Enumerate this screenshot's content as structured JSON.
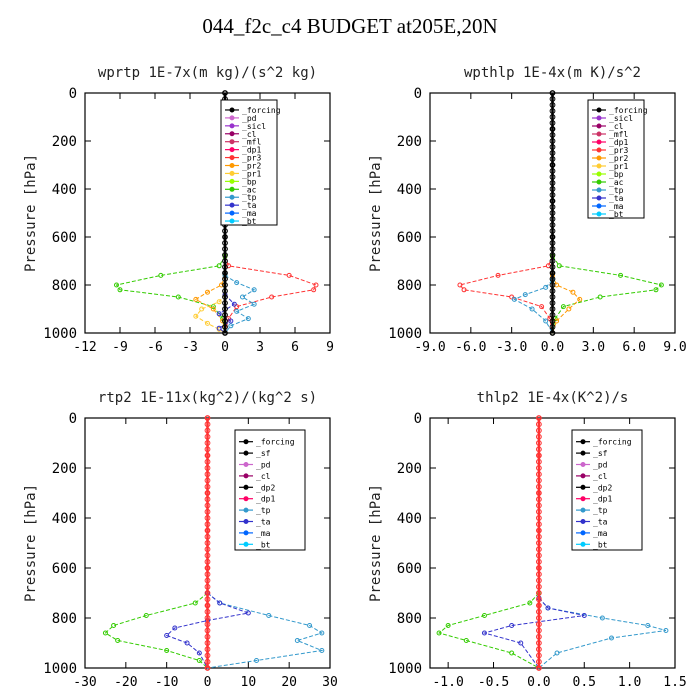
{
  "figure": {
    "title": "044_f2c_c4  BUDGET at205E,20N"
  },
  "colors": {
    "forcing": "#000000",
    "pd": "#cc66cc",
    "sicl": "#9933cc",
    "cl": "#990066",
    "mfl": "#cc3366",
    "dp1": "#ff0066",
    "pr3": "#ff3333",
    "pr2": "#ff9900",
    "pr1": "#ffcc33",
    "bp": "#99ff00",
    "ac": "#33cc00",
    "tp": "#3399cc",
    "ta": "#3333cc",
    "ma": "#0066ff",
    "bt": "#00ccff"
  },
  "chart_data": [
    {
      "type": "line",
      "title": "wprtp  1E-7x(m kg)/(s^2 kg)",
      "ylabel": "Pressure [hPa]",
      "ylim": [
        1000,
        0
      ],
      "xlim": [
        -12,
        9
      ],
      "xticks": [
        "-12",
        "-9",
        "-6",
        "-3",
        "0",
        "3",
        "6",
        "9"
      ],
      "xtick_values": [
        -12,
        -9,
        -6,
        -3,
        0,
        3,
        6,
        9
      ],
      "yticks": [
        "0",
        "200",
        "400",
        "600",
        "800",
        "1000"
      ],
      "ytick_values": [
        0,
        200,
        400,
        600,
        800,
        1000
      ],
      "legend": [
        "_forcing",
        "_pd",
        "_sicl",
        "_cl",
        "_mfl",
        "_dp1",
        "_pr3",
        "_pr2",
        "_pr1",
        "_bp",
        "_ac",
        "_tp",
        "_ta",
        "_ma",
        "_bt"
      ],
      "legend_position": "top-right",
      "series": [
        {
          "name": "_pr3",
          "color": "#ff3333",
          "x": [
            0,
            0.3,
            5.5,
            7.8,
            7.6,
            4.0,
            1.0,
            0.3,
            0
          ],
          "y": [
            680,
            720,
            760,
            800,
            820,
            850,
            890,
            940,
            1000
          ]
        },
        {
          "name": "_ac",
          "color": "#33cc00",
          "x": [
            0,
            -0.5,
            -5.5,
            -9.3,
            -9.0,
            -4.0,
            -1.0,
            -0.2,
            0
          ],
          "y": [
            680,
            720,
            760,
            800,
            820,
            850,
            890,
            940,
            1000
          ]
        },
        {
          "name": "_pr2",
          "color": "#ff9900",
          "x": [
            0,
            -0.3,
            -1.5,
            -2.5,
            -1.0,
            -0.2,
            0
          ],
          "y": [
            760,
            800,
            830,
            860,
            900,
            950,
            1000
          ]
        },
        {
          "name": "_pr1",
          "color": "#ffcc33",
          "x": [
            0,
            -0.5,
            -2.0,
            -2.5,
            -1.5,
            -0.5,
            0
          ],
          "y": [
            840,
            870,
            900,
            930,
            960,
            985,
            1000
          ]
        },
        {
          "name": "_tp",
          "color": "#3399cc",
          "x": [
            0,
            1.0,
            2.5,
            1.5,
            2.5,
            1.0,
            2.0,
            0.5,
            0
          ],
          "y": [
            760,
            790,
            820,
            850,
            880,
            910,
            940,
            970,
            1000
          ]
        },
        {
          "name": "_ta",
          "color": "#3333cc",
          "x": [
            0,
            0.8,
            -0.5,
            0.5,
            -0.5,
            0
          ],
          "y": [
            840,
            880,
            920,
            950,
            980,
            1000
          ]
        },
        {
          "name": "_forcing",
          "color": "#000000",
          "x": [
            0,
            0,
            0,
            0,
            0,
            0,
            0
          ],
          "y": [
            0,
            150,
            300,
            450,
            600,
            750,
            1000
          ]
        }
      ]
    },
    {
      "type": "line",
      "title": "wpthlp  1E-4x(m K)/s^2",
      "ylabel": "Pressure [hPa]",
      "ylim": [
        1000,
        0
      ],
      "xlim": [
        -9,
        9
      ],
      "xticks": [
        "-9.0",
        "-6.0",
        "-3.0",
        "0.0",
        "3.0",
        "6.0",
        "9.0"
      ],
      "xtick_values": [
        -9,
        -6,
        -3,
        0,
        3,
        6,
        9
      ],
      "yticks": [
        "0",
        "200",
        "400",
        "600",
        "800",
        "1000"
      ],
      "ytick_values": [
        0,
        200,
        400,
        600,
        800,
        1000
      ],
      "legend": [
        "_forcing",
        "_sicl",
        "_cl",
        "_mfl",
        "_dp1",
        "_pr3",
        "_pr2",
        "_pr1",
        "_bp",
        "_ac",
        "_tp",
        "_ta",
        "_ma",
        "_bt"
      ],
      "legend_position": "top-right",
      "series": [
        {
          "name": "_pr3",
          "color": "#ff3333",
          "x": [
            0,
            -0.3,
            -4.0,
            -6.8,
            -6.5,
            -3.0,
            -0.8,
            -0.2,
            0
          ],
          "y": [
            680,
            720,
            760,
            800,
            820,
            850,
            890,
            940,
            1000
          ]
        },
        {
          "name": "_ac",
          "color": "#33cc00",
          "x": [
            0,
            0.5,
            5.0,
            8.0,
            7.6,
            3.5,
            0.8,
            0.2,
            0
          ],
          "y": [
            680,
            720,
            760,
            800,
            820,
            850,
            890,
            940,
            1000
          ]
        },
        {
          "name": "_pr2",
          "color": "#ff9900",
          "x": [
            0,
            0.3,
            1.5,
            2.0,
            1.2,
            0.3,
            0
          ],
          "y": [
            760,
            800,
            830,
            860,
            900,
            950,
            1000
          ]
        },
        {
          "name": "_tp",
          "color": "#3399cc",
          "x": [
            0,
            -0.5,
            -2.0,
            -2.8,
            -1.5,
            -0.5,
            0
          ],
          "y": [
            780,
            810,
            840,
            860,
            900,
            950,
            1000
          ]
        },
        {
          "name": "_forcing",
          "color": "#000000",
          "x": [
            0,
            0,
            0,
            0,
            0,
            0,
            0
          ],
          "y": [
            0,
            150,
            300,
            450,
            600,
            750,
            1000
          ]
        }
      ]
    },
    {
      "type": "line",
      "title": "rtp2  1E-11x(kg^2)/(kg^2 s)",
      "ylabel": "Pressure [hPa]",
      "ylim": [
        1000,
        0
      ],
      "xlim": [
        -30,
        30
      ],
      "xticks": [
        "-30",
        "-20",
        "-10",
        "0",
        "10",
        "20",
        "30"
      ],
      "xtick_values": [
        -30,
        -20,
        -10,
        0,
        10,
        20,
        30
      ],
      "yticks": [
        "0",
        "200",
        "400",
        "600",
        "800",
        "1000"
      ],
      "ytick_values": [
        0,
        200,
        400,
        600,
        800,
        1000
      ],
      "legend": [
        "_forcing",
        "_sf",
        "_pd",
        "_cl",
        "_dp2",
        "_dp1",
        "_tp",
        "_ta",
        "_ma",
        "_bt"
      ],
      "legend_position": "top-right",
      "series": [
        {
          "name": "_dp1",
          "color": "#33cc00",
          "x": [
            0,
            -3,
            -15,
            -23,
            -25,
            -22,
            -10,
            -2,
            0
          ],
          "y": [
            700,
            740,
            790,
            830,
            860,
            890,
            930,
            970,
            1000
          ]
        },
        {
          "name": "_tp",
          "color": "#3399cc",
          "x": [
            0,
            3,
            15,
            25,
            28,
            22,
            28,
            12,
            0
          ],
          "y": [
            700,
            740,
            790,
            830,
            860,
            890,
            930,
            970,
            1000
          ]
        },
        {
          "name": "_ta",
          "color": "#3333cc",
          "x": [
            0,
            3,
            10,
            0,
            -8,
            -10,
            -5,
            -2,
            0
          ],
          "y": [
            700,
            740,
            780,
            810,
            840,
            870,
            900,
            940,
            1000
          ]
        },
        {
          "name": "_forcing",
          "color": "#ff3333",
          "x": [
            0,
            0,
            0,
            0,
            0,
            0,
            0
          ],
          "y": [
            0,
            150,
            300,
            450,
            600,
            750,
            1000
          ]
        }
      ]
    },
    {
      "type": "line",
      "title": "thlp2  1E-4x(K^2)/s",
      "ylabel": "Pressure [hPa]",
      "ylim": [
        1000,
        0
      ],
      "xlim": [
        -1.2,
        1.5
      ],
      "xticks": [
        "-1.0",
        "-0.5",
        "0.0",
        "0.5",
        "1.0",
        "1.5"
      ],
      "xtick_values": [
        -1.0,
        -0.5,
        0.0,
        0.5,
        1.0,
        1.5
      ],
      "yticks": [
        "0",
        "200",
        "400",
        "600",
        "800",
        "1000"
      ],
      "ytick_values": [
        0,
        200,
        400,
        600,
        800,
        1000
      ],
      "legend": [
        "_forcing",
        "_sf",
        "_pd",
        "_cl",
        "_dp2",
        "_dp1",
        "_tp",
        "_ta",
        "_ma",
        "_bt"
      ],
      "legend_position": "top-right",
      "series": [
        {
          "name": "_dp1",
          "color": "#33cc00",
          "x": [
            0,
            -0.1,
            -0.6,
            -1.0,
            -1.1,
            -0.8,
            -0.3,
            0
          ],
          "y": [
            700,
            740,
            790,
            830,
            860,
            890,
            940,
            1000
          ]
        },
        {
          "name": "_tp",
          "color": "#3399cc",
          "x": [
            0,
            0.1,
            0.7,
            1.2,
            1.4,
            0.8,
            0.2,
            0
          ],
          "y": [
            720,
            760,
            800,
            830,
            850,
            880,
            940,
            1000
          ]
        },
        {
          "name": "_ta",
          "color": "#3333cc",
          "x": [
            0,
            0.1,
            0.5,
            -0.3,
            -0.6,
            -0.2,
            0
          ],
          "y": [
            720,
            760,
            790,
            830,
            860,
            900,
            1000
          ]
        },
        {
          "name": "_forcing",
          "color": "#ff3333",
          "x": [
            0,
            0,
            0,
            0,
            0,
            0,
            0
          ],
          "y": [
            0,
            150,
            300,
            450,
            600,
            750,
            1000
          ]
        }
      ]
    }
  ]
}
